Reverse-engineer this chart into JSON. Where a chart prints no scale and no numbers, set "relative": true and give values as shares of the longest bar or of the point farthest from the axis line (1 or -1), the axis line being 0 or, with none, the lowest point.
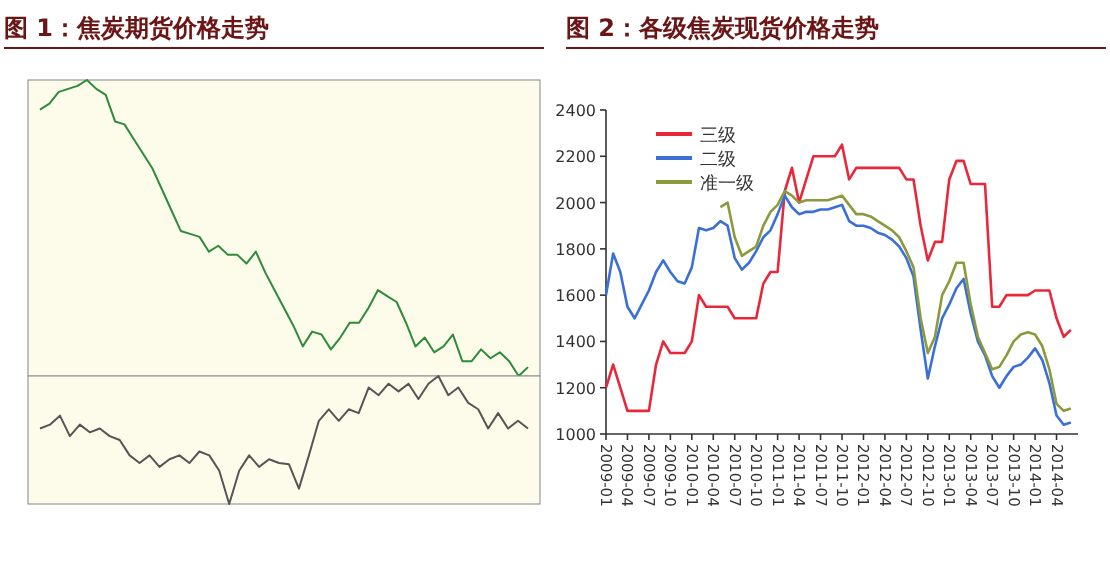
{
  "chart_data": [
    {
      "type": "line",
      "title": "图 1：焦炭期货价格走势",
      "relative": true,
      "categories": [
        null,
        null,
        null,
        null,
        null,
        null,
        null,
        null,
        null,
        null,
        null,
        null,
        null,
        null,
        null,
        null,
        null,
        null,
        null,
        null,
        null,
        null,
        null,
        null,
        null,
        null,
        null,
        null,
        null,
        null,
        null,
        null,
        null,
        null,
        null,
        null,
        null,
        null,
        null,
        null,
        null,
        null,
        null,
        null,
        null,
        null,
        null,
        null,
        null,
        null,
        null,
        null,
        null
      ],
      "series": [
        {
          "color": "#2e8b3a",
          "values": [
            0.9,
            0.92,
            0.96,
            0.97,
            0.98,
            1,
            0.97,
            0.95,
            0.86,
            0.85,
            0.8,
            0.75,
            0.7,
            0.63,
            0.56,
            0.49,
            0.48,
            0.47,
            0.42,
            0.44,
            0.41,
            0.41,
            0.38,
            0.42,
            0.35,
            0.29,
            0.23,
            0.17,
            0.1,
            0.15,
            0.14,
            0.09,
            0.13,
            0.18,
            0.18,
            0.23,
            0.29,
            0.27,
            0.25,
            0.18,
            0.1,
            0.13,
            0.08,
            0.1,
            0.14,
            0.05,
            0.05,
            0.09,
            0.06,
            0.08,
            0.05,
            0,
            0.03
          ]
        }
      ]
    },
    {
      "type": "line",
      "relative": true,
      "categories": [
        null,
        null,
        null,
        null,
        null,
        null,
        null,
        null,
        null,
        null,
        null,
        null,
        null,
        null,
        null,
        null,
        null,
        null,
        null,
        null,
        null,
        null,
        null,
        null,
        null,
        null,
        null,
        null,
        null,
        null,
        null,
        null,
        null,
        null,
        null,
        null,
        null,
        null,
        null,
        null,
        null,
        null,
        null,
        null,
        null,
        null,
        null,
        null,
        null,
        null
      ],
      "series": [
        {
          "color": "#555555",
          "values": [
            0.59,
            0.62,
            0.69,
            0.53,
            0.62,
            0.56,
            0.59,
            0.53,
            0.5,
            0.38,
            0.32,
            0.38,
            0.29,
            0.35,
            0.38,
            0.32,
            0.41,
            0.38,
            0.26,
            0,
            0.26,
            0.38,
            0.29,
            0.35,
            0.32,
            0.31,
            0.12,
            0.38,
            0.65,
            0.74,
            0.65,
            0.74,
            0.71,
            0.91,
            0.85,
            0.94,
            0.88,
            0.94,
            0.82,
            0.94,
            1,
            0.85,
            0.91,
            0.79,
            0.74,
            0.59,
            0.71,
            0.59,
            0.65,
            0.59
          ]
        }
      ]
    },
    {
      "type": "line",
      "title": "图 2：各级焦炭现货价格走势",
      "x": [
        "2009-01",
        "2009-02",
        "2009-03",
        "2009-04",
        "2009-05",
        "2009-06",
        "2009-07",
        "2009-08",
        "2009-09",
        "2009-10",
        "2009-11",
        "2009-12",
        "2010-01",
        "2010-02",
        "2010-03",
        "2010-04",
        "2010-05",
        "2010-06",
        "2010-07",
        "2010-08",
        "2010-09",
        "2010-10",
        "2010-11",
        "2010-12",
        "2011-01",
        "2011-02",
        "2011-03",
        "2011-04",
        "2011-05",
        "2011-06",
        "2011-07",
        "2011-08",
        "2011-09",
        "2011-10",
        "2011-11",
        "2011-12",
        "2012-01",
        "2012-02",
        "2012-03",
        "2012-04",
        "2012-05",
        "2012-06",
        "2012-07",
        "2012-08",
        "2012-09",
        "2012-10",
        "2012-11",
        "2012-12",
        "2013-01",
        "2013-02",
        "2013-03",
        "2013-04",
        "2013-05",
        "2013-06",
        "2013-07",
        "2013-08",
        "2013-09",
        "2013-10",
        "2013-11",
        "2013-12",
        "2014-01",
        "2014-02",
        "2014-03",
        "2014-04",
        "2014-05",
        "2014-06"
      ],
      "xlim": [
        "2009-01",
        "2014-07"
      ],
      "xticks": [
        "2009-01",
        "2009-04",
        "2009-07",
        "2009-10",
        "2010-01",
        "2010-04",
        "2010-07",
        "2010-10",
        "2011-01",
        "2011-04",
        "2011-07",
        "2011-10",
        "2012-01",
        "2012-04",
        "2012-07",
        "2012-10",
        "2013-01",
        "2013-04",
        "2013-07",
        "2013-10",
        "2014-01",
        "2014-04"
      ],
      "ylim": [
        1000,
        2400
      ],
      "yticks": [
        1000,
        1200,
        1400,
        1600,
        1800,
        2000,
        2200,
        2400
      ],
      "legend": "top left",
      "series": [
        {
          "name": "三级",
          "color": "#e8283a",
          "values": [
            1200,
            1300,
            1200,
            1100,
            1100,
            1100,
            1100,
            1300,
            1400,
            1350,
            1350,
            1350,
            1400,
            1600,
            1550,
            1550,
            1550,
            1550,
            1500,
            1500,
            1500,
            1500,
            1650,
            1700,
            1700,
            2050,
            2150,
            2000,
            2100,
            2200,
            2200,
            2200,
            2200,
            2250,
            2100,
            2150,
            2150,
            2150,
            2150,
            2150,
            2150,
            2150,
            2100,
            2100,
            1900,
            1750,
            1830,
            1830,
            2100,
            2180,
            2180,
            2080,
            2080,
            2080,
            1550,
            1550,
            1600,
            1600,
            1600,
            1600,
            1620,
            1620,
            1620,
            1500,
            1420,
            1450
          ]
        },
        {
          "name": "二级",
          "color": "#3a6fd8",
          "values": [
            1600,
            1780,
            1700,
            1550,
            1500,
            1560,
            1620,
            1700,
            1750,
            1700,
            1660,
            1650,
            1720,
            1890,
            1880,
            1890,
            1920,
            1900,
            1760,
            1710,
            1740,
            1790,
            1850,
            1880,
            1950,
            2030,
            1980,
            1950,
            1960,
            1960,
            1970,
            1970,
            1980,
            1990,
            1920,
            1900,
            1900,
            1890,
            1870,
            1860,
            1840,
            1810,
            1760,
            1680,
            1450,
            1240,
            1380,
            1500,
            1560,
            1630,
            1670,
            1520,
            1400,
            1340,
            1250,
            1200,
            1250,
            1290,
            1300,
            1330,
            1370,
            1320,
            1220,
            1080,
            1040,
            1050
          ]
        },
        {
          "name": "准一级",
          "color": "#8a9a3c",
          "values": [
            null,
            null,
            null,
            null,
            null,
            null,
            null,
            null,
            null,
            null,
            null,
            null,
            null,
            null,
            null,
            null,
            1980,
            2000,
            1850,
            1770,
            1790,
            1810,
            1900,
            1960,
            1990,
            2050,
            2030,
            2000,
            2010,
            2010,
            2010,
            2010,
            2020,
            2030,
            1990,
            1950,
            1950,
            1940,
            1920,
            1900,
            1880,
            1850,
            1790,
            1720,
            1500,
            1350,
            1420,
            1600,
            1660,
            1740,
            1740,
            1560,
            1420,
            1350,
            1280,
            1290,
            1340,
            1400,
            1430,
            1440,
            1430,
            1380,
            1280,
            1130,
            1100,
            1110
          ]
        }
      ]
    }
  ]
}
